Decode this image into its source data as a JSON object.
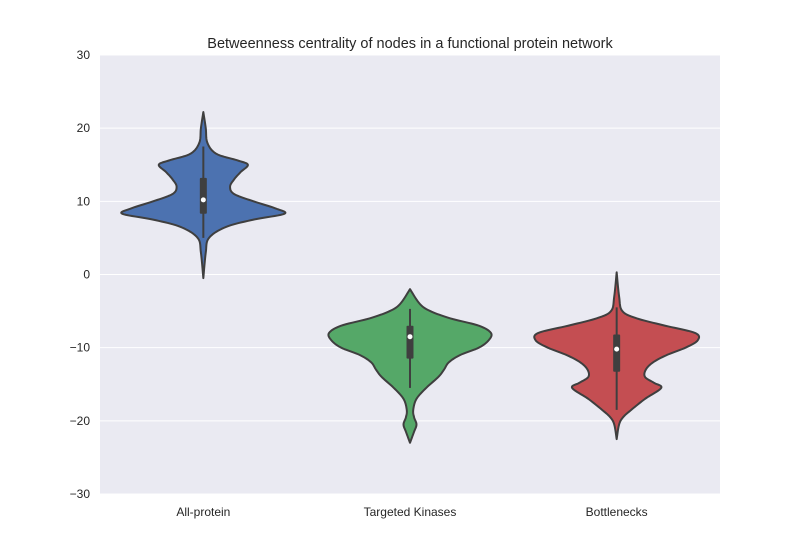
{
  "chart_data": {
    "type": "violin",
    "title": "Betweenness centrality of nodes in a functional protein network",
    "xlabel": "",
    "ylabel": "",
    "ylim": [
      -30,
      30
    ],
    "yticks": [
      30,
      20,
      10,
      0,
      -10,
      -20,
      -30
    ],
    "ytick_labels": [
      "30",
      "20",
      "10",
      "0",
      "−10",
      "−20",
      "−30"
    ],
    "grid": true,
    "categories": [
      "All-protein",
      "Targeted Kinases",
      "Bottlenecks"
    ],
    "colors": [
      "#4C72B0",
      "#55A868",
      "#C44E52"
    ],
    "violins": [
      {
        "category": "All-protein",
        "min": -0.5,
        "q1": 8.3,
        "median": 10.2,
        "q3": 13.2,
        "max": 22.2,
        "whisker_low": 5.0,
        "whisker_high": 17.5,
        "profile": [
          [
            -0.5,
            0.0
          ],
          [
            3.0,
            0.03
          ],
          [
            5.0,
            0.07
          ],
          [
            6.5,
            0.28
          ],
          [
            7.5,
            0.62
          ],
          [
            8.3,
            1.0
          ],
          [
            9.0,
            0.9
          ],
          [
            10.0,
            0.62
          ],
          [
            11.0,
            0.38
          ],
          [
            12.0,
            0.33
          ],
          [
            13.0,
            0.38
          ],
          [
            14.0,
            0.46
          ],
          [
            15.0,
            0.55
          ],
          [
            15.6,
            0.42
          ],
          [
            16.5,
            0.16
          ],
          [
            18.0,
            0.05
          ],
          [
            20.0,
            0.03
          ],
          [
            22.2,
            0.0
          ]
        ]
      },
      {
        "category": "Targeted Kinases",
        "min": -23.0,
        "q1": -11.5,
        "median": -8.5,
        "q3": -7.0,
        "max": -2.0,
        "whisker_low": -15.5,
        "whisker_high": -4.7,
        "profile": [
          [
            -23.0,
            0.0
          ],
          [
            -21.5,
            0.05
          ],
          [
            -20.5,
            0.08
          ],
          [
            -19.5,
            0.05
          ],
          [
            -18.5,
            0.04
          ],
          [
            -17.0,
            0.08
          ],
          [
            -15.5,
            0.2
          ],
          [
            -14.0,
            0.35
          ],
          [
            -13.0,
            0.42
          ],
          [
            -12.0,
            0.48
          ],
          [
            -11.0,
            0.62
          ],
          [
            -10.0,
            0.85
          ],
          [
            -9.0,
            0.97
          ],
          [
            -8.0,
            1.0
          ],
          [
            -7.0,
            0.85
          ],
          [
            -6.0,
            0.5
          ],
          [
            -5.0,
            0.25
          ],
          [
            -4.0,
            0.12
          ],
          [
            -2.0,
            0.0
          ]
        ]
      },
      {
        "category": "Bottlenecks",
        "min": -22.5,
        "q1": -13.3,
        "median": -10.2,
        "q3": -8.2,
        "max": 0.3,
        "whisker_low": -18.5,
        "whisker_high": -4.5,
        "profile": [
          [
            -22.5,
            0.0
          ],
          [
            -20.5,
            0.03
          ],
          [
            -19.5,
            0.08
          ],
          [
            -18.5,
            0.18
          ],
          [
            -17.0,
            0.35
          ],
          [
            -15.5,
            0.55
          ],
          [
            -14.8,
            0.46
          ],
          [
            -14.0,
            0.35
          ],
          [
            -13.0,
            0.36
          ],
          [
            -12.0,
            0.45
          ],
          [
            -11.0,
            0.62
          ],
          [
            -10.0,
            0.85
          ],
          [
            -9.0,
            1.0
          ],
          [
            -8.0,
            0.97
          ],
          [
            -7.0,
            0.6
          ],
          [
            -6.0,
            0.25
          ],
          [
            -5.0,
            0.07
          ],
          [
            -3.0,
            0.03
          ],
          [
            0.3,
            0.0
          ]
        ]
      }
    ]
  }
}
